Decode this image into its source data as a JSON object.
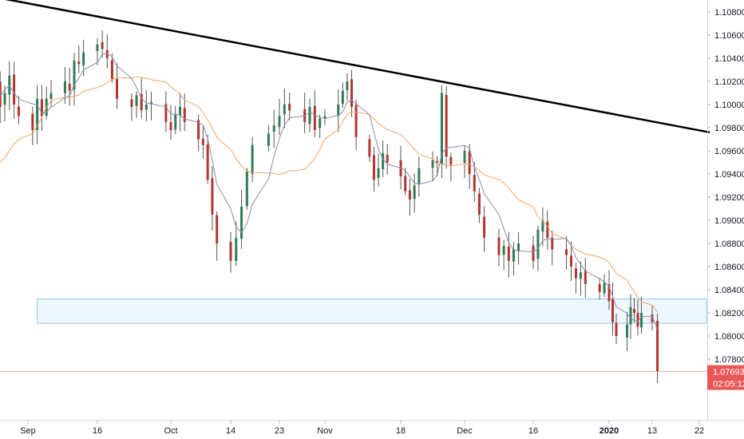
{
  "colors": {
    "up": "#2e7d57",
    "down": "#b3352f",
    "wick": "#555555",
    "ma_fast": "#8c8ca8",
    "ma_slow": "#f5a260",
    "trendline": "#000000",
    "zone_fill": "#eef7fd",
    "zone_border": "#8fc9ec",
    "price_line": "#f3a6a6",
    "price_tag": "#e85757"
  },
  "chart_data": {
    "type": "candlestick",
    "instrument_hint": "EURUSD daily",
    "y_range": [
      1.0738,
      1.1091
    ],
    "y_ticks": [
      "1.10800",
      "1.10600",
      "1.10400",
      "1.10200",
      "1.10000",
      "1.09800",
      "1.09600",
      "1.09400",
      "1.09200",
      "1.09000",
      "1.08800",
      "1.08600",
      "1.08400",
      "1.08200",
      "1.08000",
      "1.07800"
    ],
    "x_labels": [
      {
        "label": "Sep",
        "date": "2019-09-01",
        "bold": false
      },
      {
        "label": "16",
        "date": "2019-09-16",
        "bold": false
      },
      {
        "label": "Oct",
        "date": "2019-10-01",
        "bold": false
      },
      {
        "label": "14",
        "date": "2019-10-14",
        "bold": false
      },
      {
        "label": "23",
        "date": "2019-10-23",
        "bold": false
      },
      {
        "label": "Nov",
        "date": "2019-11-01",
        "bold": false
      },
      {
        "label": "18",
        "date": "2019-11-18",
        "bold": false
      },
      {
        "label": "Dec",
        "date": "2019-12-02",
        "bold": false
      },
      {
        "label": "16",
        "date": "2019-12-16",
        "bold": false
      },
      {
        "label": "2020",
        "date": "2020-01-01",
        "bold": true
      },
      {
        "label": "13",
        "date": "2020-01-13",
        "bold": false
      },
      {
        "label": "22",
        "date": "2020-01-22",
        "bold": false
      }
    ],
    "last_price": "1.07693",
    "countdown": "02:05:12",
    "support_zone": {
      "from_date": "2019-09-03",
      "to_price_top": 1.0832,
      "to_price_bottom": 1.0811
    },
    "trendline": {
      "start": {
        "date": "2019-08-22",
        "price": 1.1095
      },
      "end": {
        "date": "2020-01-24",
        "price": 1.0976
      }
    },
    "candles_close": [
      1.0895,
      1.088,
      1.09,
      1.0865,
      1.0872,
      1.0905,
      1.093,
      1.0915,
      1.089,
      1.0862,
      1.0858,
      1.083,
      1.0818,
      1.0822,
      1.084,
      1.0862,
      1.0895,
      1.0925,
      1.0955,
      1.097,
      1.0952,
      1.0935,
      1.096,
      1.0982,
      1.095,
      1.093,
      1.0945,
      1.0918,
      1.0968,
      1.1005,
      1.099,
      1.1012,
      1.096,
      1.0935,
      1.0905,
      1.0885,
      1.0872,
      1.086,
      1.0855,
      1.0848,
      1.0852,
      1.0838,
      1.0845,
      1.086,
      1.087,
      1.089,
      1.0918,
      1.0942,
      1.0962,
      1.0955,
      1.094,
      1.092,
      1.0932,
      1.0915,
      1.0905,
      1.089,
      1.088,
      1.093,
      1.098,
      1.101,
      1.103,
      1.1018,
      1.0998,
      1.101,
      1.1025,
      1.1,
      1.099,
      1.0978,
      1.1005,
      1.099,
      1.1005,
      1.101,
      1.102,
      1.1012,
      1.1038,
      1.1035,
      1.1045,
      1.1052,
      1.1048,
      1.104,
      1.1022,
      1.1005,
      1.0998,
      1.1008,
      1.0995,
      1.1,
      1.1002,
      1.0985,
      1.0978,
      1.0992,
      1.0998,
      1.0985,
      1.097,
      1.0965,
      1.0935,
      1.0905,
      1.088,
      1.0865,
      1.0885,
      1.0912,
      1.0942,
      1.0965,
      1.0975,
      1.0982,
      1.099,
      1.1,
      1.0995,
      1.0985,
      1.0998,
      1.0978,
      1.0988,
      1.099,
      1.1,
      1.1012,
      1.102,
      1.0998,
      1.0972,
      1.0955,
      1.0935,
      1.0945,
      1.0958,
      1.095,
      1.0938,
      1.0925,
      1.0918,
      1.093,
      1.0945,
      1.0952,
      1.095,
      1.101,
      1.0955,
      1.0948,
      1.096,
      1.094,
      1.0925,
      1.0905,
      1.0885,
      1.087,
      1.0878,
      1.0865,
      1.0875,
      1.088,
      1.0865,
      1.0892,
      1.09,
      1.0885,
      1.0875,
      1.087,
      1.086,
      1.085,
      1.0855,
      1.0845,
      1.0838,
      1.0846,
      1.083,
      1.0812,
      1.08,
      1.081,
      1.0825,
      1.082,
      1.0808,
      1.082,
      1.0812,
      1.0769
    ],
    "price_scale_ref": {
      "price_a": 1.108,
      "price_b": 1.078
    }
  }
}
